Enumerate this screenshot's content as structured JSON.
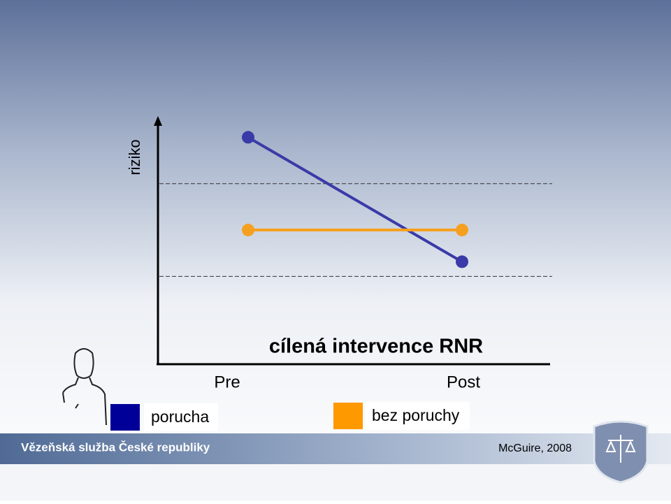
{
  "chart_data": {
    "type": "line",
    "ylabel": "riziko",
    "categories": [
      "Pre",
      "Post"
    ],
    "series": [
      {
        "name": "porucha",
        "color": "#3a3aa8",
        "legend_color": "#000099",
        "values": [
          9.3,
          4.2
        ]
      },
      {
        "name": "bez poruchy",
        "color": "#f5a020",
        "legend_color": "#ff9900",
        "values": [
          5.5,
          5.5
        ]
      }
    ],
    "ylim": [
      0,
      10
    ],
    "reference_lines": [
      7.4,
      3.6
    ],
    "annotation": "cílená intervence RNR"
  },
  "footer": {
    "organization": "Vězeňská služba České republiky",
    "citation": "McGuire, 2008"
  }
}
